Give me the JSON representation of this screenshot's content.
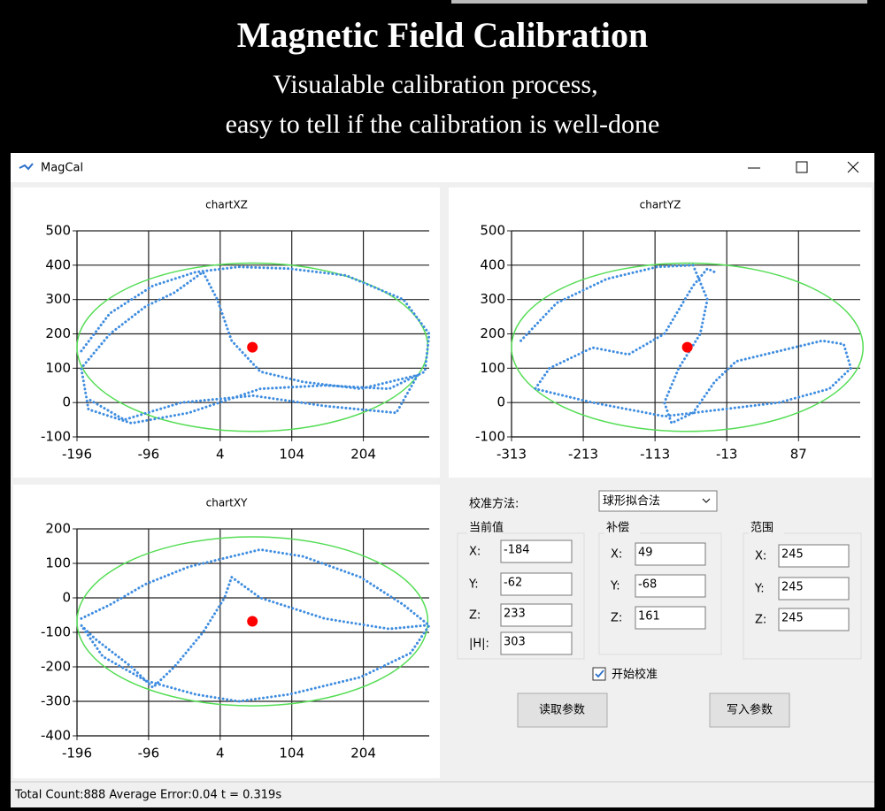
{
  "header": {
    "title": "Magnetic Field Calibration",
    "subtitle": [
      "Visualable calibration process,",
      "easy to tell if the calibration is well-done"
    ]
  },
  "window": {
    "title": "MagCal"
  },
  "chart_data": [
    {
      "type": "scatter",
      "title": "chartXZ",
      "xlim": [
        -196,
        296
      ],
      "xticks": [
        -196,
        -96,
        4,
        104,
        204
      ],
      "ylim": [
        -100,
        500
      ],
      "yticks": [
        -100,
        0,
        100,
        200,
        300,
        400,
        500
      ],
      "grid": true,
      "trace": {
        "color": "#3f8de0",
        "x": [
          -190,
          -150,
          -90,
          -30,
          30,
          100,
          180,
          260,
          296,
          290,
          240,
          150,
          60,
          -40,
          -120,
          -180,
          -190,
          -150,
          -100,
          -60,
          -20,
          0,
          20,
          60,
          120,
          200,
          280,
          250,
          150,
          50,
          -50,
          -130,
          -180
        ],
        "y": [
          150,
          260,
          340,
          380,
          395,
          390,
          370,
          300,
          200,
          90,
          40,
          50,
          40,
          -30,
          -60,
          -20,
          100,
          200,
          280,
          320,
          380,
          300,
          180,
          90,
          60,
          40,
          80,
          -30,
          -10,
          20,
          0,
          -50,
          10
        ]
      },
      "center": [
        49,
        161
      ],
      "radius": [
        245,
        245
      ],
      "center_color": "#ff0000",
      "ellipse_color": "#55dd55"
    },
    {
      "type": "scatter",
      "title": "chartYZ",
      "xlim": [
        -313,
        173
      ],
      "xticks": [
        -313,
        -213,
        -113,
        -13,
        87
      ],
      "ylim": [
        -100,
        500
      ],
      "yticks": [
        -100,
        0,
        100,
        200,
        300,
        400,
        500
      ],
      "grid": true,
      "trace": {
        "color": "#3f8de0",
        "x": [
          -300,
          -250,
          -180,
          -110,
          -60,
          -40,
          -50,
          -80,
          -100,
          -90,
          -60,
          -30,
          0,
          60,
          120,
          150,
          160,
          130,
          60,
          -20,
          -100,
          -200,
          -280,
          -260,
          -200,
          -150,
          -100,
          -60,
          -40,
          -30
        ],
        "y": [
          180,
          290,
          360,
          395,
          400,
          300,
          200,
          100,
          0,
          -60,
          -30,
          60,
          120,
          150,
          180,
          170,
          100,
          40,
          0,
          -20,
          -40,
          0,
          40,
          100,
          160,
          140,
          200,
          340,
          390,
          380
        ]
      },
      "center": [
        -68,
        161
      ],
      "radius": [
        245,
        245
      ],
      "center_color": "#ff0000",
      "ellipse_color": "#55dd55"
    },
    {
      "type": "scatter",
      "title": "chartXY",
      "xlim": [
        -196,
        296
      ],
      "xticks": [
        -196,
        -96,
        4,
        104,
        204
      ],
      "ylim": [
        -400,
        200
      ],
      "yticks": [
        -400,
        -300,
        -200,
        -100,
        0,
        100,
        200
      ],
      "grid": true,
      "trace": {
        "color": "#3f8de0",
        "x": [
          -190,
          -150,
          -100,
          -40,
          20,
          60,
          120,
          200,
          260,
          296,
          270,
          200,
          100,
          30,
          -30,
          -100,
          -160,
          -190,
          -170,
          -120,
          -90,
          -60,
          -20,
          10,
          20,
          60,
          150,
          240,
          290
        ],
        "y": [
          -60,
          -20,
          40,
          90,
          120,
          140,
          120,
          60,
          -20,
          -80,
          -160,
          -230,
          -280,
          -300,
          -280,
          -240,
          -170,
          -80,
          -120,
          -200,
          -260,
          -200,
          -100,
          0,
          60,
          0,
          -60,
          -90,
          -80
        ]
      },
      "center": [
        49,
        -68
      ],
      "radius": [
        245,
        245
      ],
      "center_color": "#ff0000",
      "ellipse_color": "#55dd55"
    }
  ],
  "panel": {
    "method_label": "校准方法:",
    "method": "球形拟合法",
    "groups": [
      {
        "title": "当前值",
        "fields": [
          {
            "label": "X:",
            "value": -184
          },
          {
            "label": "Y:",
            "value": -62
          },
          {
            "label": "Z:",
            "value": 233
          },
          {
            "label": "|H|:",
            "value": 303
          }
        ]
      },
      {
        "title": "补偿",
        "fields": [
          {
            "label": "X:",
            "value": 49
          },
          {
            "label": "Y:",
            "value": -68
          },
          {
            "label": "Z:",
            "value": 161
          }
        ]
      },
      {
        "title": "范围",
        "fields": [
          {
            "label": "X:",
            "value": 245
          },
          {
            "label": "Y:",
            "value": 245
          },
          {
            "label": "Z:",
            "value": 245
          }
        ]
      }
    ],
    "checkbox": "开始校准",
    "buttons": [
      "读取参数",
      "写入参数"
    ]
  },
  "status": "Total Count:888  Average Error:0.04  t = 0.319s"
}
